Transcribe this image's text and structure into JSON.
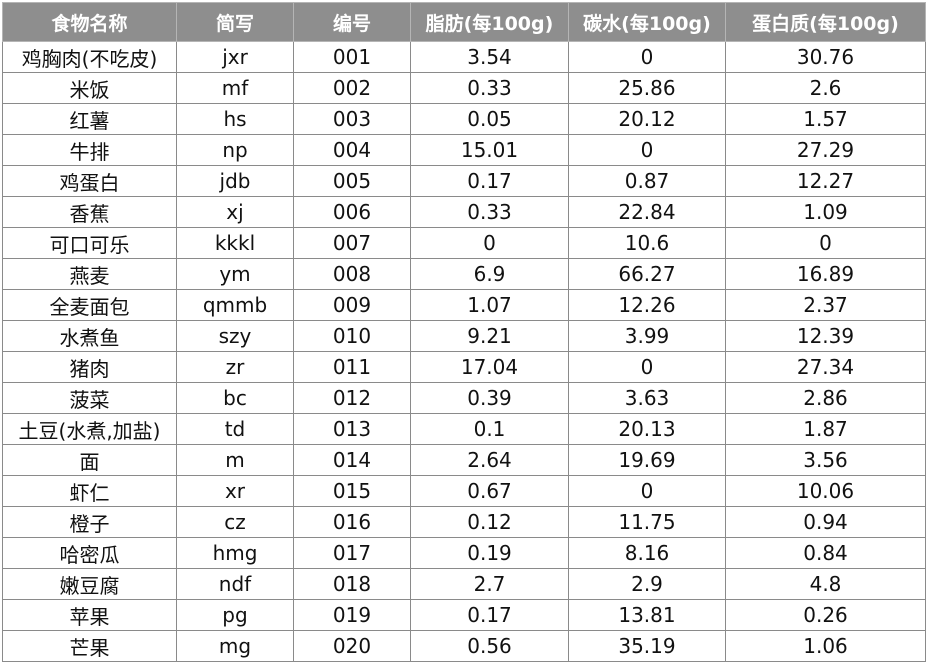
{
  "table": {
    "headers": [
      "食物名称",
      "简写",
      "编号",
      "脂肪(每100g)",
      "碳水(每100g)",
      "蛋白质(每100g)"
    ],
    "rows": [
      [
        "鸡胸肉(不吃皮)",
        "jxr",
        "001",
        "3.54",
        "0",
        "30.76"
      ],
      [
        "米饭",
        "mf",
        "002",
        "0.33",
        "25.86",
        "2.6"
      ],
      [
        "红薯",
        "hs",
        "003",
        "0.05",
        "20.12",
        "1.57"
      ],
      [
        "牛排",
        "np",
        "004",
        "15.01",
        "0",
        "27.29"
      ],
      [
        "鸡蛋白",
        "jdb",
        "005",
        "0.17",
        "0.87",
        "12.27"
      ],
      [
        "香蕉",
        "xj",
        "006",
        "0.33",
        "22.84",
        "1.09"
      ],
      [
        "可口可乐",
        "kkkl",
        "007",
        "0",
        "10.6",
        "0"
      ],
      [
        "燕麦",
        "ym",
        "008",
        "6.9",
        "66.27",
        "16.89"
      ],
      [
        "全麦面包",
        "qmmb",
        "009",
        "1.07",
        "12.26",
        "2.37"
      ],
      [
        "水煮鱼",
        "szy",
        "010",
        "9.21",
        "3.99",
        "12.39"
      ],
      [
        "猪肉",
        "zr",
        "011",
        "17.04",
        "0",
        "27.34"
      ],
      [
        "菠菜",
        "bc",
        "012",
        "0.39",
        "3.63",
        "2.86"
      ],
      [
        "土豆(水煮,加盐)",
        "td",
        "013",
        "0.1",
        "20.13",
        "1.87"
      ],
      [
        "面",
        "m",
        "014",
        "2.64",
        "19.69",
        "3.56"
      ],
      [
        "虾仁",
        "xr",
        "015",
        "0.67",
        "0",
        "10.06"
      ],
      [
        "橙子",
        "cz",
        "016",
        "0.12",
        "11.75",
        "0.94"
      ],
      [
        "哈密瓜",
        "hmg",
        "017",
        "0.19",
        "8.16",
        "0.84"
      ],
      [
        "嫩豆腐",
        "ndf",
        "018",
        "2.7",
        "2.9",
        "4.8"
      ],
      [
        "苹果",
        "pg",
        "019",
        "0.17",
        "13.81",
        "0.26"
      ],
      [
        "芒果",
        "mg",
        "020",
        "0.56",
        "35.19",
        "1.06"
      ]
    ]
  },
  "colors": {
    "header_bg": "#8e8e8e",
    "header_text": "#ffffff",
    "grid": "#8a8a8a",
    "cell_text": "#111111"
  }
}
